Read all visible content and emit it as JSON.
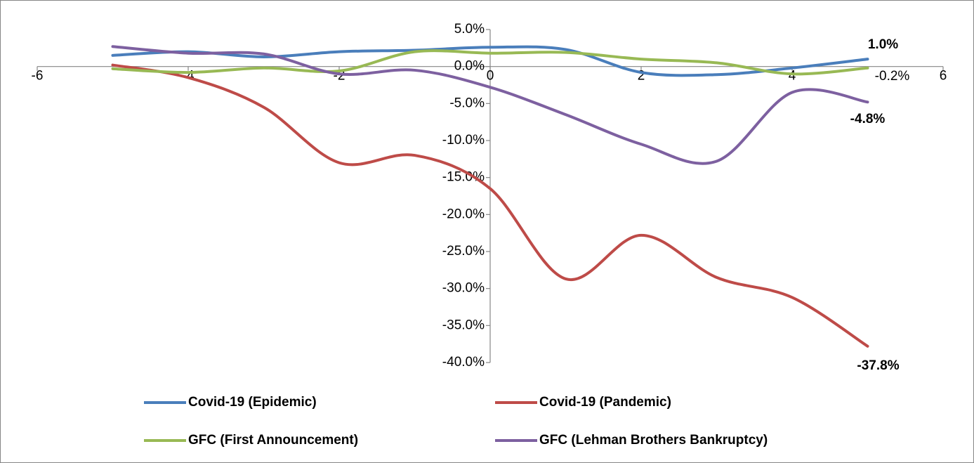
{
  "chart_data": {
    "type": "line",
    "x": [
      -5,
      -4,
      -3,
      -2,
      -1,
      0,
      1,
      2,
      3,
      4,
      5
    ],
    "series": [
      {
        "name": "Covid-19 (Epidemic)",
        "color": "#4a7ebb",
        "values": [
          1.5,
          2.0,
          1.3,
          2.0,
          2.2,
          2.6,
          2.3,
          -0.8,
          -1.1,
          -0.2,
          1.0
        ],
        "value_labels": [
          null,
          null,
          null,
          null,
          null,
          null,
          null,
          null,
          null,
          null,
          "1.0%"
        ],
        "label_bold": true
      },
      {
        "name": "Covid-19 (Pandemic)",
        "color": "#be4b48",
        "values": [
          0.2,
          -1.5,
          -5.5,
          -13.0,
          -12.0,
          -16.5,
          -28.7,
          -22.8,
          -28.5,
          -31.2,
          -37.8
        ],
        "value_labels": [
          null,
          null,
          null,
          null,
          null,
          null,
          null,
          null,
          null,
          null,
          "-37.8%"
        ],
        "label_bold": true
      },
      {
        "name": "GFC (First Announcement)",
        "color": "#98b954",
        "values": [
          -0.3,
          -0.8,
          -0.2,
          -0.6,
          2.0,
          1.8,
          1.9,
          1.0,
          0.5,
          -1.0,
          -0.2
        ],
        "value_labels": [
          null,
          null,
          null,
          null,
          null,
          null,
          null,
          null,
          null,
          null,
          "-0.2%"
        ],
        "label_bold": false
      },
      {
        "name": "GFC (Lehman Brothers Bankruptcy)",
        "color": "#7d60a0",
        "values": [
          2.7,
          1.8,
          1.7,
          -1.0,
          -0.5,
          -2.8,
          -6.5,
          -10.5,
          -12.8,
          -3.5,
          -4.8
        ],
        "value_labels": [
          null,
          null,
          null,
          null,
          null,
          null,
          null,
          null,
          null,
          null,
          "-4.8%"
        ],
        "label_bold": true
      }
    ],
    "xlim": [
      -6,
      6
    ],
    "xticks": [
      -6,
      -4,
      -2,
      0,
      2,
      4,
      6
    ],
    "ylim": [
      -40,
      5
    ],
    "yticks": [
      {
        "value": 5,
        "label": "5.0%"
      },
      {
        "value": 0,
        "label": "0.0%"
      },
      {
        "value": -5,
        "label": "-5.0%"
      },
      {
        "value": -10,
        "label": "-10.0%"
      },
      {
        "value": -15,
        "label": "-15.0%"
      },
      {
        "value": -20,
        "label": "-20.0%"
      },
      {
        "value": -25,
        "label": "-25.0%"
      },
      {
        "value": -30,
        "label": "-30.0%"
      },
      {
        "value": -35,
        "label": "-35.0%"
      },
      {
        "value": -40,
        "label": "-40.0%"
      }
    ],
    "smooth": true,
    "grid": false,
    "legend": "bottom"
  }
}
